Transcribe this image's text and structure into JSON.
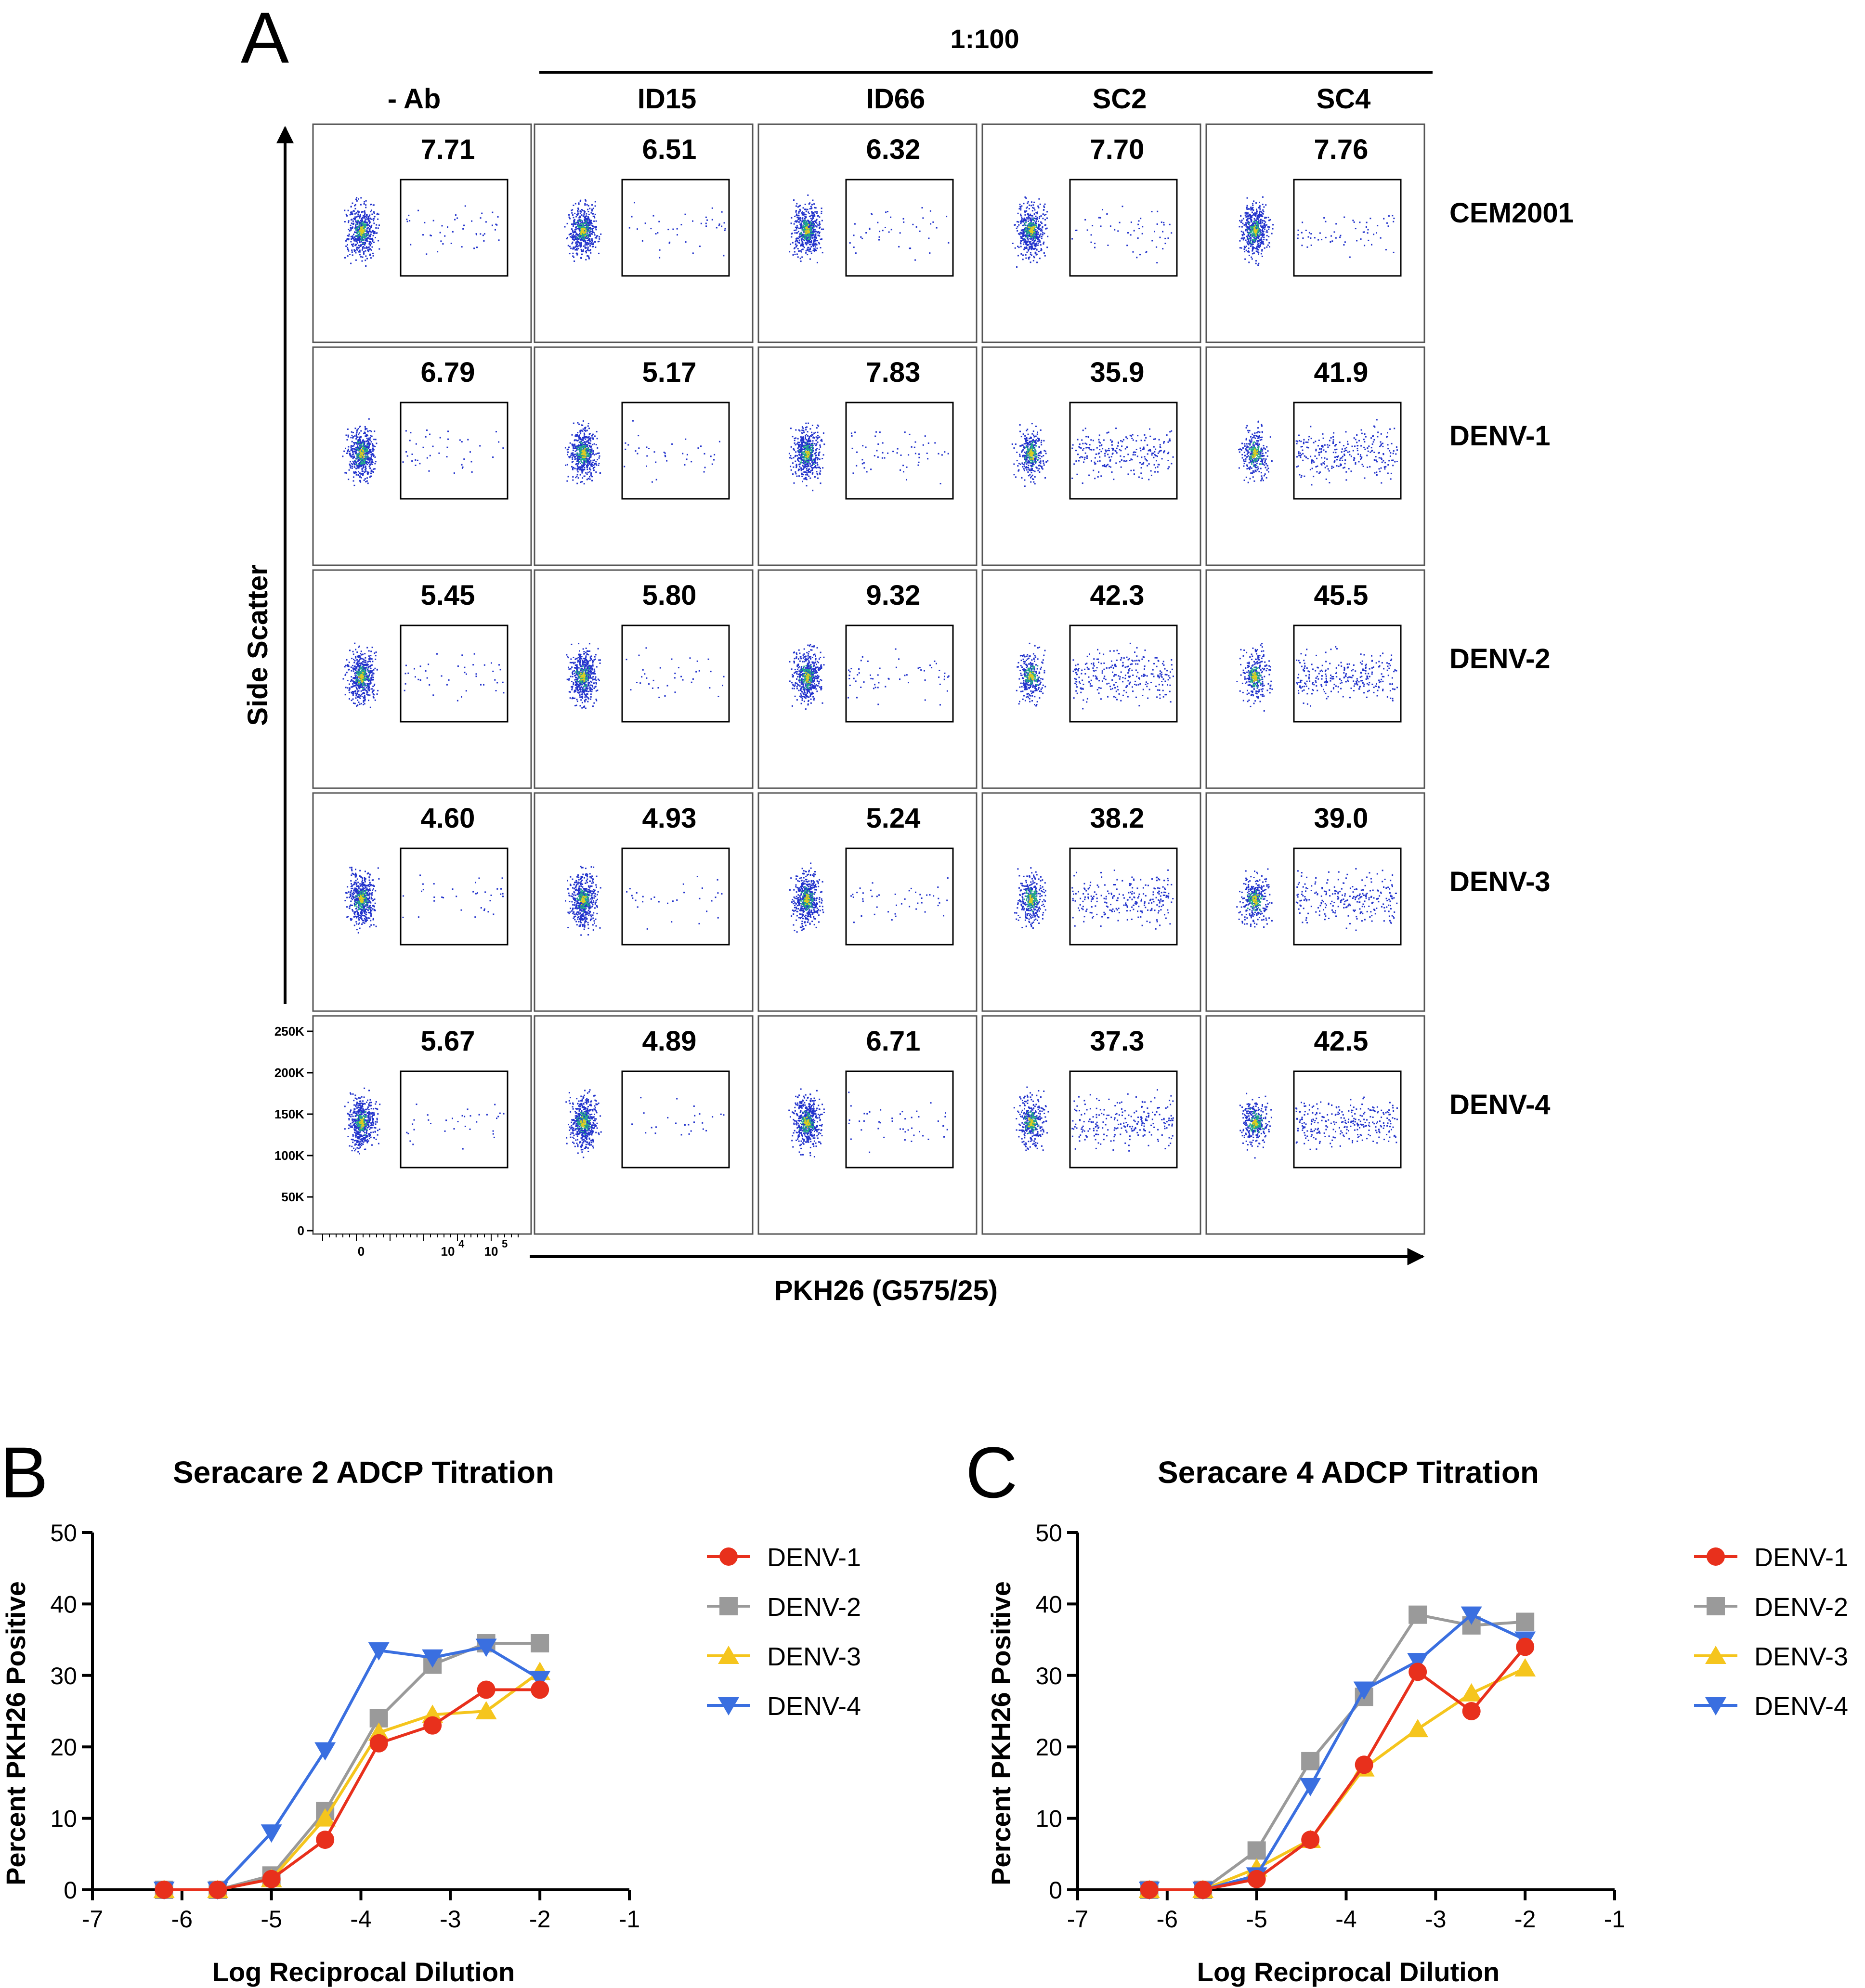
{
  "panel_a": {
    "letter": "A",
    "dilution": "1:100",
    "columns": [
      "- Ab",
      "ID15",
      "ID66",
      "SC2",
      "SC4"
    ],
    "rows": [
      "CEM2001",
      "DENV-1",
      "DENV-2",
      "DENV-3",
      "DENV-4"
    ],
    "y_axis_label": "Side Scatter",
    "x_axis_label": "PKH26 (G575/25)",
    "y_ticks": [
      "250K",
      "200K",
      "150K",
      "100K",
      "50K",
      "0"
    ],
    "x_tick_zero": "0",
    "x_tick_base": "10",
    "x_tick_exp": [
      "4",
      "5"
    ],
    "gate_values": [
      [
        "7.71",
        "6.51",
        "6.32",
        "7.70",
        "7.76"
      ],
      [
        "6.79",
        "5.17",
        "7.83",
        "35.9",
        "41.9"
      ],
      [
        "5.45",
        "5.80",
        "9.32",
        "42.3",
        "45.5"
      ],
      [
        "4.60",
        "4.93",
        "5.24",
        "38.2",
        "39.0"
      ],
      [
        "5.67",
        "4.89",
        "6.71",
        "37.3",
        "42.5"
      ]
    ],
    "colors": {
      "dots": "#2233cc",
      "dense": "#22aa88",
      "core": "#ddcc22"
    }
  },
  "panel_b": {
    "letter": "B"
  },
  "panel_c": {
    "letter": "C"
  },
  "series_colors": {
    "DENV-1": "#e8301c",
    "DENV-2": "#9a9a9a",
    "DENV-3": "#f5c51d",
    "DENV-4": "#3a6fe0"
  },
  "chart_data": [
    {
      "type": "line",
      "title": "Seracare 2 ADCP Titration",
      "xlabel": "Log Reciprocal Dilution",
      "ylabel": "Percent PKH26 Positive",
      "xlim": [
        -7,
        -1
      ],
      "ylim": [
        0,
        50
      ],
      "xticks": [
        -7,
        -6,
        -5,
        -4,
        -3,
        -2,
        -1
      ],
      "yticks": [
        0,
        10,
        20,
        30,
        40,
        50
      ],
      "legend_position": "right",
      "series": [
        {
          "name": "DENV-1",
          "marker": "circle",
          "x": [
            -6.2,
            -5.6,
            -5.0,
            -4.4,
            -3.8,
            -3.2,
            -2.6,
            -2.0
          ],
          "y": [
            0,
            0,
            1.5,
            7,
            20.5,
            23,
            28,
            28
          ]
        },
        {
          "name": "DENV-2",
          "marker": "square",
          "x": [
            -6.2,
            -5.6,
            -5.0,
            -4.4,
            -3.8,
            -3.2,
            -2.6,
            -2.0
          ],
          "y": [
            0,
            0,
            2,
            11,
            24,
            31.5,
            34.5,
            34.5
          ]
        },
        {
          "name": "DENV-3",
          "marker": "triangle-up",
          "x": [
            -6.2,
            -5.6,
            -5.0,
            -4.4,
            -3.8,
            -3.2,
            -2.6,
            -2.0
          ],
          "y": [
            0,
            0,
            1.5,
            10,
            22,
            24.5,
            25,
            30.5
          ]
        },
        {
          "name": "DENV-4",
          "marker": "triangle-down",
          "x": [
            -6.2,
            -5.6,
            -5.0,
            -4.4,
            -3.8,
            -3.2,
            -2.6,
            -2.0
          ],
          "y": [
            0,
            0,
            8,
            19.5,
            33.5,
            32.5,
            34,
            29.5
          ]
        }
      ]
    },
    {
      "type": "line",
      "title": "Seracare 4 ADCP Titration",
      "xlabel": "Log Reciprocal Dilution",
      "ylabel": "Percent PKH26 Positive",
      "xlim": [
        -7,
        -1
      ],
      "ylim": [
        0,
        50
      ],
      "xticks": [
        -7,
        -6,
        -5,
        -4,
        -3,
        -2,
        -1
      ],
      "yticks": [
        0,
        10,
        20,
        30,
        40,
        50
      ],
      "legend_position": "right",
      "series": [
        {
          "name": "DENV-1",
          "marker": "circle",
          "x": [
            -6.2,
            -5.6,
            -5.0,
            -4.4,
            -3.8,
            -3.2,
            -2.6,
            -2.0
          ],
          "y": [
            0,
            0,
            1.5,
            7,
            17.5,
            30.5,
            25,
            34
          ]
        },
        {
          "name": "DENV-2",
          "marker": "square",
          "x": [
            -6.2,
            -5.6,
            -5.0,
            -4.4,
            -3.8,
            -3.2,
            -2.6,
            -2.0
          ],
          "y": [
            0,
            0,
            5.5,
            18,
            27,
            38.5,
            37,
            37.5
          ]
        },
        {
          "name": "DENV-3",
          "marker": "triangle-up",
          "x": [
            -6.2,
            -5.6,
            -5.0,
            -4.4,
            -3.8,
            -3.2,
            -2.6,
            -2.0
          ],
          "y": [
            0,
            0,
            3,
            7,
            17,
            22.5,
            27.5,
            31
          ]
        },
        {
          "name": "DENV-4",
          "marker": "triangle-down",
          "x": [
            -6.2,
            -5.6,
            -5.0,
            -4.4,
            -3.8,
            -3.2,
            -2.6,
            -2.0
          ],
          "y": [
            0,
            0,
            2,
            14.5,
            28,
            32,
            38.5,
            35
          ]
        }
      ]
    }
  ]
}
